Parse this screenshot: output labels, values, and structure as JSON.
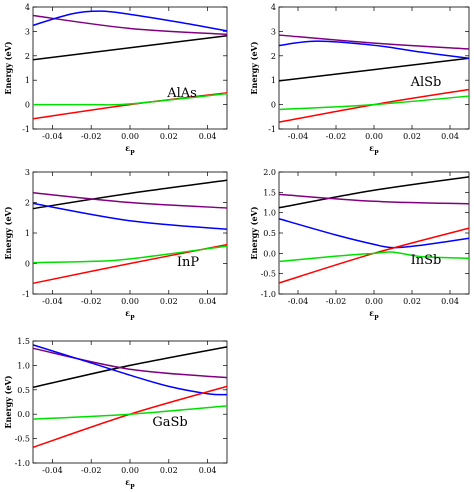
{
  "chart_data": [
    {
      "type": "line",
      "title": "",
      "annotation": "AlAs",
      "xlabel": "ε_P",
      "ylabel": "Energy (eV)",
      "xlim": [
        -0.05,
        0.05
      ],
      "ylim": [
        -1,
        4
      ],
      "xticks": [
        "-0.04",
        "-0.02",
        "0.00",
        "0.02",
        "0.04"
      ],
      "yticks": [
        "-1",
        "0",
        "1",
        "2",
        "3",
        "4"
      ],
      "series": [
        {
          "color": "#000000",
          "x": [
            -0.05,
            0.05
          ],
          "y": [
            1.84,
            2.82
          ]
        },
        {
          "color": "#800080",
          "x": [
            -0.05,
            0.0,
            0.05
          ],
          "y": [
            3.65,
            3.12,
            2.88
          ]
        },
        {
          "color": "#0000ff",
          "x": [
            -0.05,
            -0.03,
            -0.015,
            0.0,
            0.025,
            0.05
          ],
          "y": [
            3.25,
            3.72,
            3.83,
            3.7,
            3.38,
            3.02
          ]
        },
        {
          "color": "#ff0000",
          "x": [
            -0.05,
            0.0,
            0.05
          ],
          "y": [
            -0.58,
            0.0,
            0.48
          ]
        },
        {
          "color": "#00e000",
          "x": [
            -0.05,
            -0.02,
            0.0,
            0.05
          ],
          "y": [
            0.0,
            0.0,
            0.03,
            0.45
          ]
        }
      ]
    },
    {
      "type": "line",
      "title": "",
      "annotation": "AlSb",
      "xlabel": "ε_P",
      "ylabel": "Energy (eV)",
      "xlim": [
        -0.05,
        0.05
      ],
      "ylim": [
        -1,
        4
      ],
      "xticks": [
        "-0.04",
        "-0.02",
        "0.00",
        "0.02",
        "0.04"
      ],
      "yticks": [
        "-1",
        "0",
        "1",
        "2",
        "3",
        "4"
      ],
      "series": [
        {
          "color": "#000000",
          "x": [
            -0.05,
            0.05
          ],
          "y": [
            0.97,
            1.9
          ]
        },
        {
          "color": "#800080",
          "x": [
            -0.05,
            0.0,
            0.05
          ],
          "y": [
            2.85,
            2.52,
            2.28
          ]
        },
        {
          "color": "#0000ff",
          "x": [
            -0.05,
            -0.03,
            0.0,
            0.025,
            0.05
          ],
          "y": [
            2.42,
            2.6,
            2.43,
            2.15,
            1.9
          ]
        },
        {
          "color": "#ff0000",
          "x": [
            -0.05,
            0.0,
            0.05
          ],
          "y": [
            -0.72,
            0.0,
            0.62
          ]
        },
        {
          "color": "#00e000",
          "x": [
            -0.05,
            0.0,
            0.05
          ],
          "y": [
            -0.2,
            0.0,
            0.35
          ]
        }
      ]
    },
    {
      "type": "line",
      "title": "",
      "annotation": "InP",
      "xlabel": "ε_P",
      "ylabel": "Energy (eV)",
      "xlim": [
        -0.05,
        0.05
      ],
      "ylim": [
        -1,
        3
      ],
      "xticks": [
        "-0.04",
        "-0.02",
        "0.00",
        "0.02",
        "0.04"
      ],
      "yticks": [
        "-1",
        "0",
        "1",
        "2",
        "3"
      ],
      "series": [
        {
          "color": "#000000",
          "x": [
            -0.05,
            0.0,
            0.05
          ],
          "y": [
            1.8,
            2.3,
            2.73
          ]
        },
        {
          "color": "#800080",
          "x": [
            -0.05,
            0.0,
            0.05
          ],
          "y": [
            2.32,
            2.0,
            1.82
          ]
        },
        {
          "color": "#0000ff",
          "x": [
            -0.05,
            0.0,
            0.05
          ],
          "y": [
            1.97,
            1.4,
            1.12
          ]
        },
        {
          "color": "#ff0000",
          "x": [
            -0.05,
            0.0,
            0.05
          ],
          "y": [
            -0.65,
            0.0,
            0.62
          ]
        },
        {
          "color": "#00e000",
          "x": [
            -0.05,
            -0.02,
            0.0,
            0.05
          ],
          "y": [
            0.03,
            0.07,
            0.15,
            0.57
          ]
        }
      ]
    },
    {
      "type": "line",
      "title": "",
      "annotation": "InSb",
      "xlabel": "ε_P",
      "ylabel": "Energy (eV)",
      "xlim": [
        -0.05,
        0.05
      ],
      "ylim": [
        -1,
        2
      ],
      "xticks": [
        "-0.04",
        "-0.02",
        "0.00",
        "0.02",
        "0.04"
      ],
      "yticks": [
        "-1.0",
        "-0.5",
        "0.0",
        "0.5",
        "1.0",
        "1.5",
        "2.0"
      ],
      "series": [
        {
          "color": "#000000",
          "x": [
            -0.05,
            0.0,
            0.05
          ],
          "y": [
            1.12,
            1.55,
            1.88
          ]
        },
        {
          "color": "#800080",
          "x": [
            -0.05,
            0.0,
            0.05
          ],
          "y": [
            1.45,
            1.28,
            1.22
          ]
        },
        {
          "color": "#0000ff",
          "x": [
            -0.05,
            -0.02,
            0.0,
            0.01,
            0.025,
            0.05
          ],
          "y": [
            0.85,
            0.45,
            0.22,
            0.14,
            0.2,
            0.37
          ]
        },
        {
          "color": "#ff0000",
          "x": [
            -0.05,
            0.0,
            0.05
          ],
          "y": [
            -0.73,
            0.0,
            0.62
          ]
        },
        {
          "color": "#00e000",
          "x": [
            -0.05,
            -0.02,
            0.0,
            0.01,
            0.025,
            0.05
          ],
          "y": [
            -0.2,
            -0.07,
            0.0,
            0.03,
            -0.08,
            -0.12
          ]
        }
      ]
    },
    {
      "type": "line",
      "title": "",
      "annotation": "GaSb",
      "xlabel": "ε_P",
      "ylabel": "Energy (eV)",
      "xlim": [
        -0.05,
        0.05
      ],
      "ylim": [
        -1,
        1.5
      ],
      "xticks": [
        "-0.04",
        "-0.02",
        "0.00",
        "0.02",
        "0.04"
      ],
      "yticks": [
        "-1.0",
        "-0.5",
        "0.0",
        "0.5",
        "1.0",
        "1.5"
      ],
      "series": [
        {
          "color": "#000000",
          "x": [
            -0.05,
            0.0,
            0.05
          ],
          "y": [
            0.55,
            1.0,
            1.38
          ]
        },
        {
          "color": "#800080",
          "x": [
            -0.05,
            0.0,
            0.05
          ],
          "y": [
            1.35,
            0.92,
            0.75
          ]
        },
        {
          "color": "#0000ff",
          "x": [
            -0.05,
            -0.02,
            0.0,
            0.02,
            0.04,
            0.05
          ],
          "y": [
            1.42,
            1.05,
            0.8,
            0.57,
            0.42,
            0.4
          ]
        },
        {
          "color": "#ff0000",
          "x": [
            -0.05,
            0.0,
            0.05
          ],
          "y": [
            -0.68,
            0.0,
            0.57
          ]
        },
        {
          "color": "#00e000",
          "x": [
            -0.05,
            0.0,
            0.05
          ],
          "y": [
            -0.1,
            0.0,
            0.17
          ]
        }
      ]
    }
  ]
}
